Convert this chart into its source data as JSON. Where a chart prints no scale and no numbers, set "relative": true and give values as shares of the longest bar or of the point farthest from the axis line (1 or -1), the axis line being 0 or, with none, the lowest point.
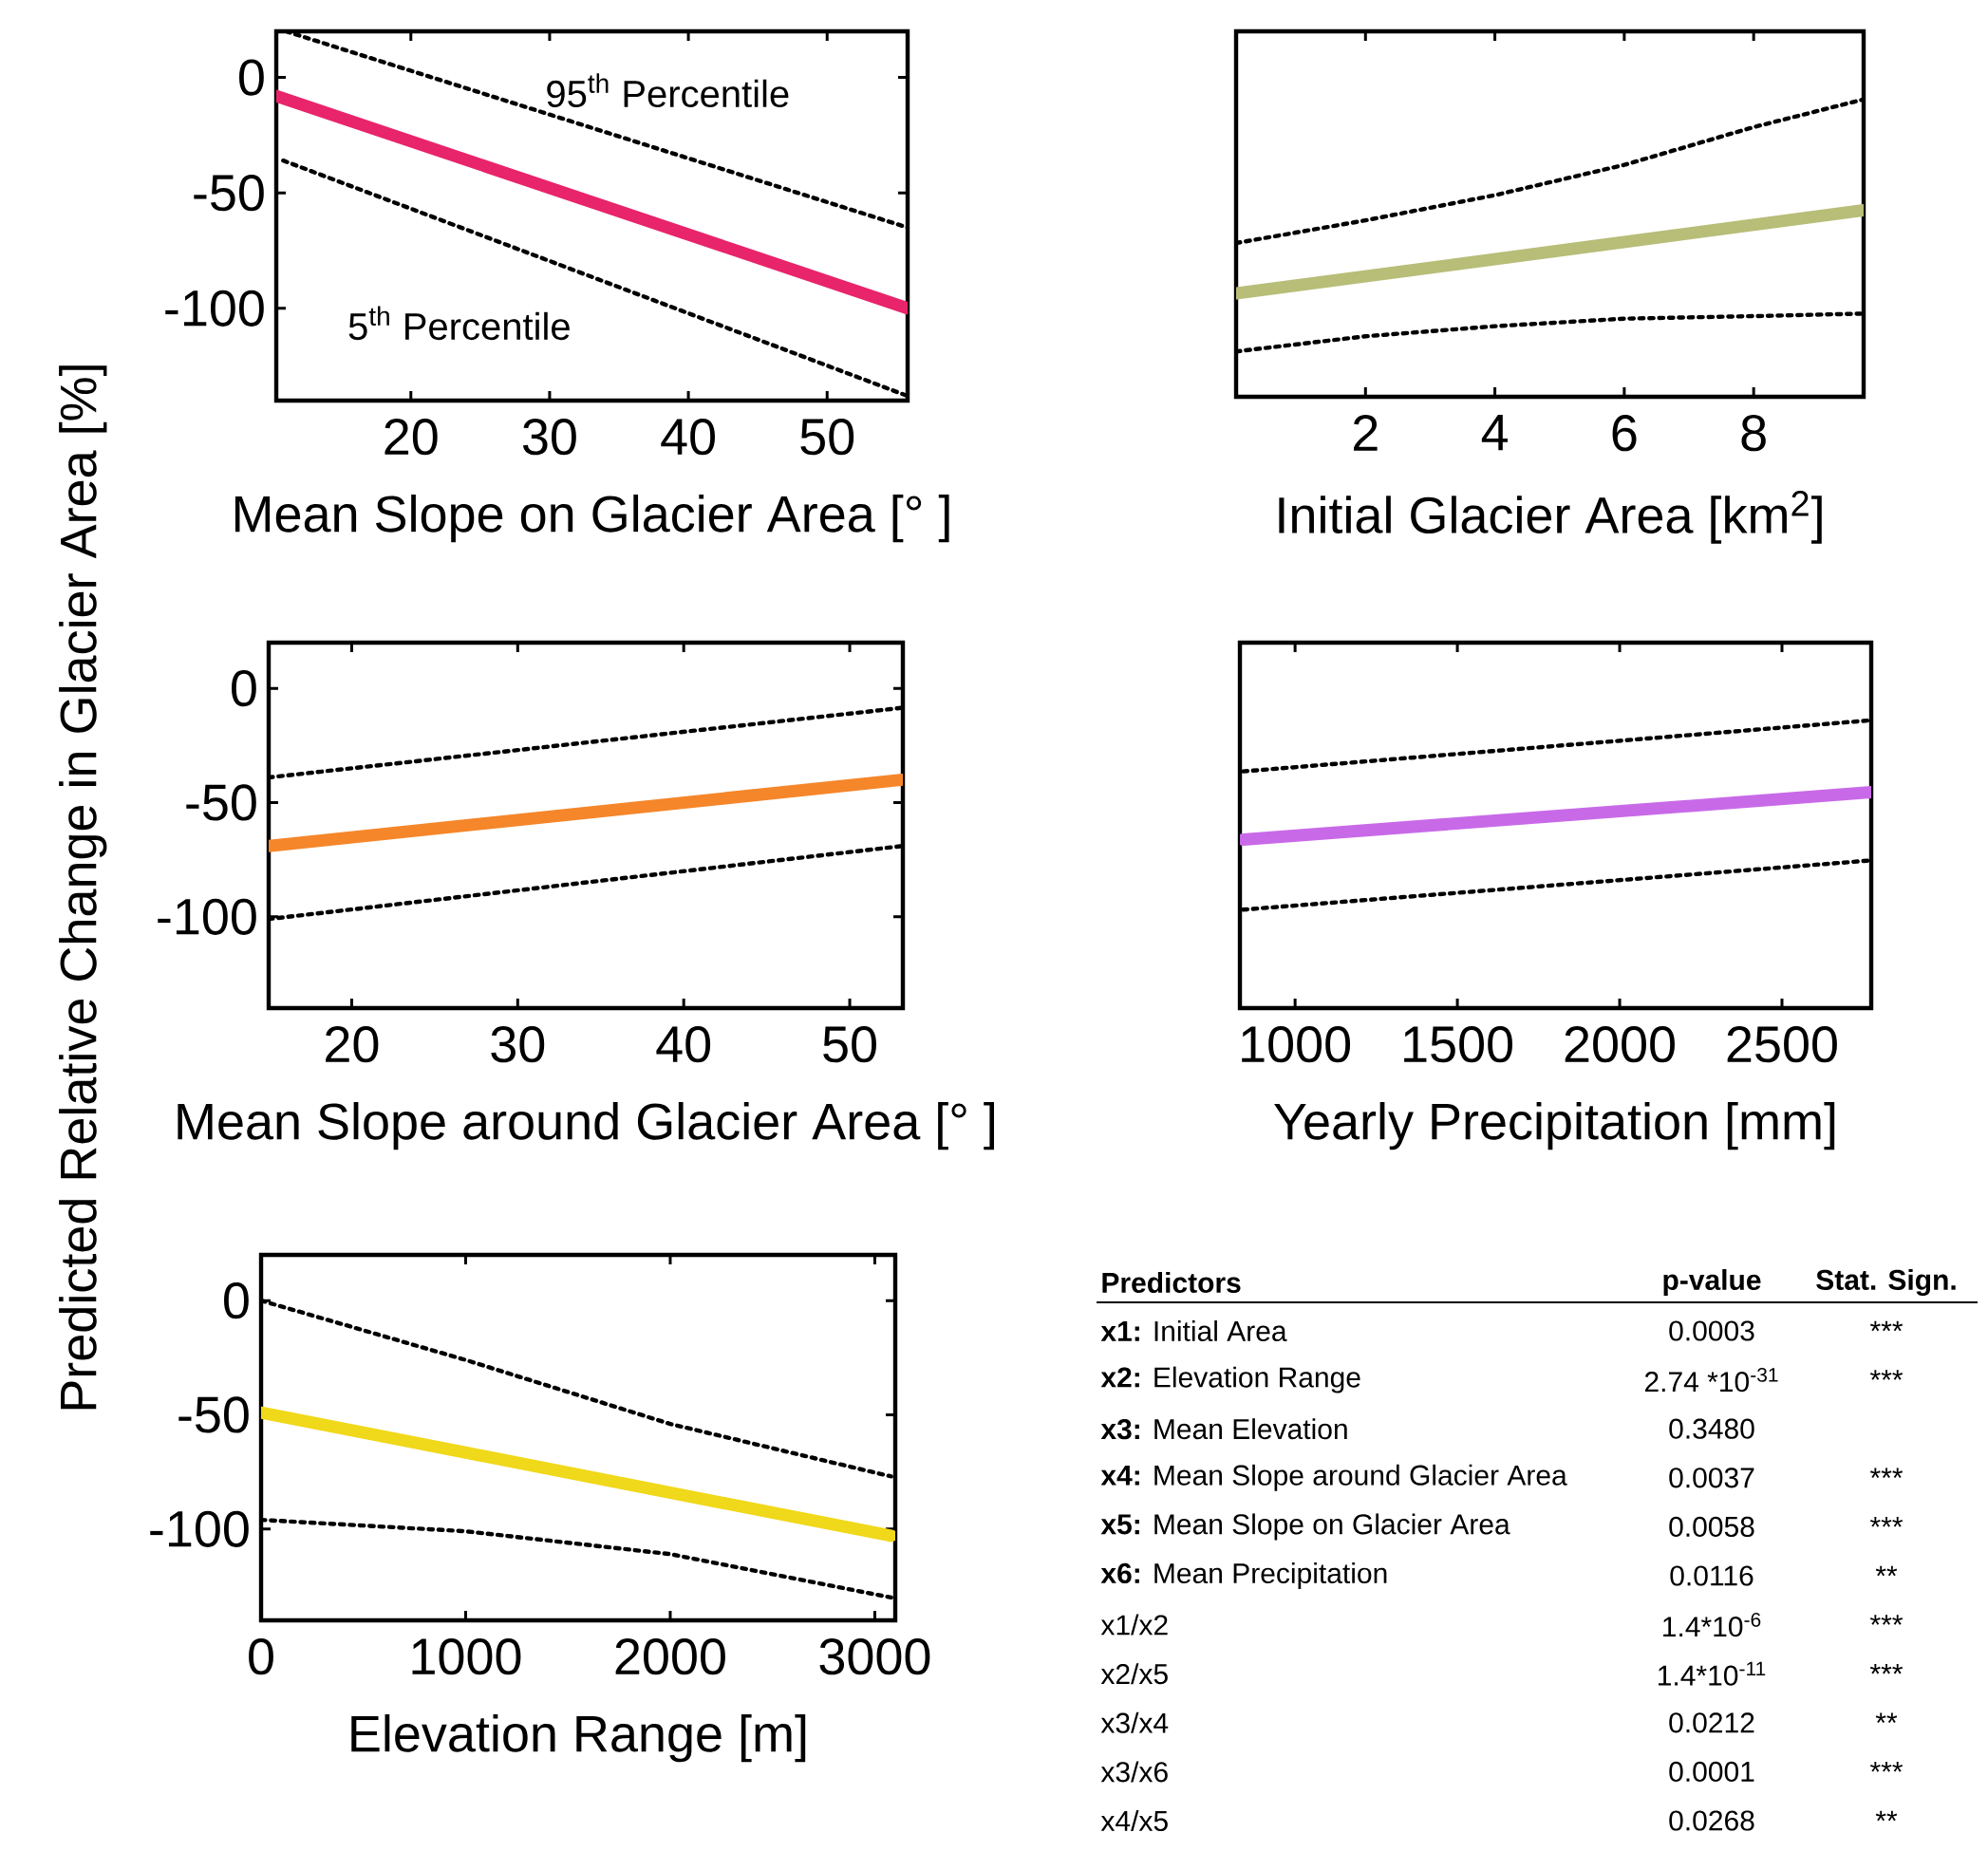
{
  "chart_data": [
    {
      "type": "line",
      "xlabel": "Mean Slope on Glacier Area [°  ]",
      "xlim": [
        10.3,
        55.8
      ],
      "xticks": [
        20,
        30,
        40,
        50
      ],
      "ylim": [
        -140,
        20
      ],
      "yticks": [
        -100,
        -50,
        0
      ],
      "annotations": [
        "95$^{th}$ Percentile",
        "5$^{th}$ Percentile"
      ],
      "series": [
        {
          "color": "#e8246b",
          "line_style": "solid",
          "x": [
            10.3,
            55.8
          ],
          "values": [
            -8,
            -100
          ]
        },
        {
          "color": "#000000",
          "line_style": "dotted",
          "x": [
            11,
            55.8
          ],
          "values": [
            20,
            -65
          ]
        },
        {
          "color": "#000000",
          "line_style": "dotted",
          "x": [
            10.8,
            55.8
          ],
          "values": [
            -36,
            -138
          ]
        }
      ]
    },
    {
      "type": "line",
      "xlabel": "Initial Glacier Area [km$^{2}$]",
      "xlim": [
        0,
        9.7
      ],
      "xticks": [
        2,
        4,
        6,
        8
      ],
      "relative": true,
      "series": [
        {
          "color": "#b8bd78",
          "line_style": "solid",
          "x": [
            0,
            9.7
          ],
          "values": [
            0.23,
            0.56
          ]
        },
        {
          "color": "#000000",
          "line_style": "dotted",
          "x": [
            0,
            2,
            4,
            6,
            8,
            9.7
          ],
          "values": [
            0.43,
            0.52,
            0.62,
            0.74,
            0.89,
            1
          ]
        },
        {
          "color": "#000000",
          "line_style": "dotted",
          "x": [
            0,
            2,
            4,
            6,
            8,
            9.7
          ],
          "values": [
            0,
            0.06,
            0.1,
            0.13,
            0.14,
            0.15
          ]
        }
      ]
    },
    {
      "type": "line",
      "xlabel": "Mean Slope around Glacier Area [°  ]",
      "ylabel": "Predicted Relative Change in Glacier Area [%]",
      "xlim": [
        15,
        53.2
      ],
      "xticks": [
        20,
        30,
        40,
        50
      ],
      "ylim": [
        -140,
        20
      ],
      "yticks": [
        -100,
        -50,
        0
      ],
      "series": [
        {
          "color": "#f5862a",
          "line_style": "solid",
          "x": [
            15,
            53.2
          ],
          "values": [
            -69,
            -40
          ]
        },
        {
          "color": "#000000",
          "line_style": "dotted",
          "x": [
            15,
            53.2
          ],
          "values": [
            -39,
            -8.5
          ]
        },
        {
          "color": "#000000",
          "line_style": "dotted",
          "x": [
            15,
            53.2
          ],
          "values": [
            -101,
            -69
          ]
        }
      ]
    },
    {
      "type": "line",
      "xlabel": "Yearly Precipitation [mm]",
      "xlim": [
        830,
        2775
      ],
      "xticks": [
        1000,
        1500,
        2000,
        2500
      ],
      "relative": true,
      "series": [
        {
          "color": "#c86ae8",
          "line_style": "solid",
          "x": [
            840,
            2775
          ],
          "values": [
            0.37,
            0.62
          ]
        },
        {
          "color": "#000000",
          "line_style": "dotted",
          "x": [
            840,
            2775
          ],
          "values": [
            0.73,
            1
          ]
        },
        {
          "color": "#000000",
          "line_style": "dotted",
          "x": [
            840,
            2775
          ],
          "values": [
            0,
            0.26
          ]
        }
      ]
    },
    {
      "type": "line",
      "xlabel": "Elevation Range [m]",
      "xlim": [
        0,
        3100
      ],
      "xticks": [
        0,
        1000,
        2000,
        3000
      ],
      "ylim": [
        -140,
        20
      ],
      "yticks": [
        -100,
        -50,
        0
      ],
      "series": [
        {
          "color": "#f0d81a",
          "line_style": "solid",
          "x": [
            0,
            3080
          ],
          "values": [
            -49,
            -103
          ]
        },
        {
          "color": "#000000",
          "line_style": "dotted",
          "x": [
            0,
            1000,
            2000,
            3080
          ],
          "values": [
            0,
            -26,
            -54,
            -77
          ]
        },
        {
          "color": "#000000",
          "line_style": "dotted",
          "x": [
            0,
            1000,
            2000,
            3080
          ],
          "values": [
            -96,
            -101,
            -111,
            -130
          ]
        }
      ]
    },
    {
      "type": "other",
      "annotations": [
        "Predictors",
        "p-value",
        "Stat. Sign.",
        "**x1:** Initial Area",
        "0.0003",
        "***",
        "**x2:** Elevation Range",
        "2.74 *10$^{-31}$",
        "***",
        "**x3:** Mean Elevation",
        "0.3480",
        null,
        "**x4:** Mean Slope around Glacier Area",
        "0.0037",
        "***",
        "**x5:** Mean Slope on Glacier Area",
        "0.0058",
        "***",
        "**x6:** Mean Precipitation",
        "0.0116",
        "**",
        "x1/x2",
        "1.4*10$^{-6}$",
        "***",
        "x2/x5",
        "1.4*10$^{-11}$",
        "***",
        "x3/x4",
        "0.0212",
        "**",
        "x3/x6",
        "0.0001",
        "***",
        "x4/x5",
        "0.0268",
        "**"
      ]
    }
  ]
}
